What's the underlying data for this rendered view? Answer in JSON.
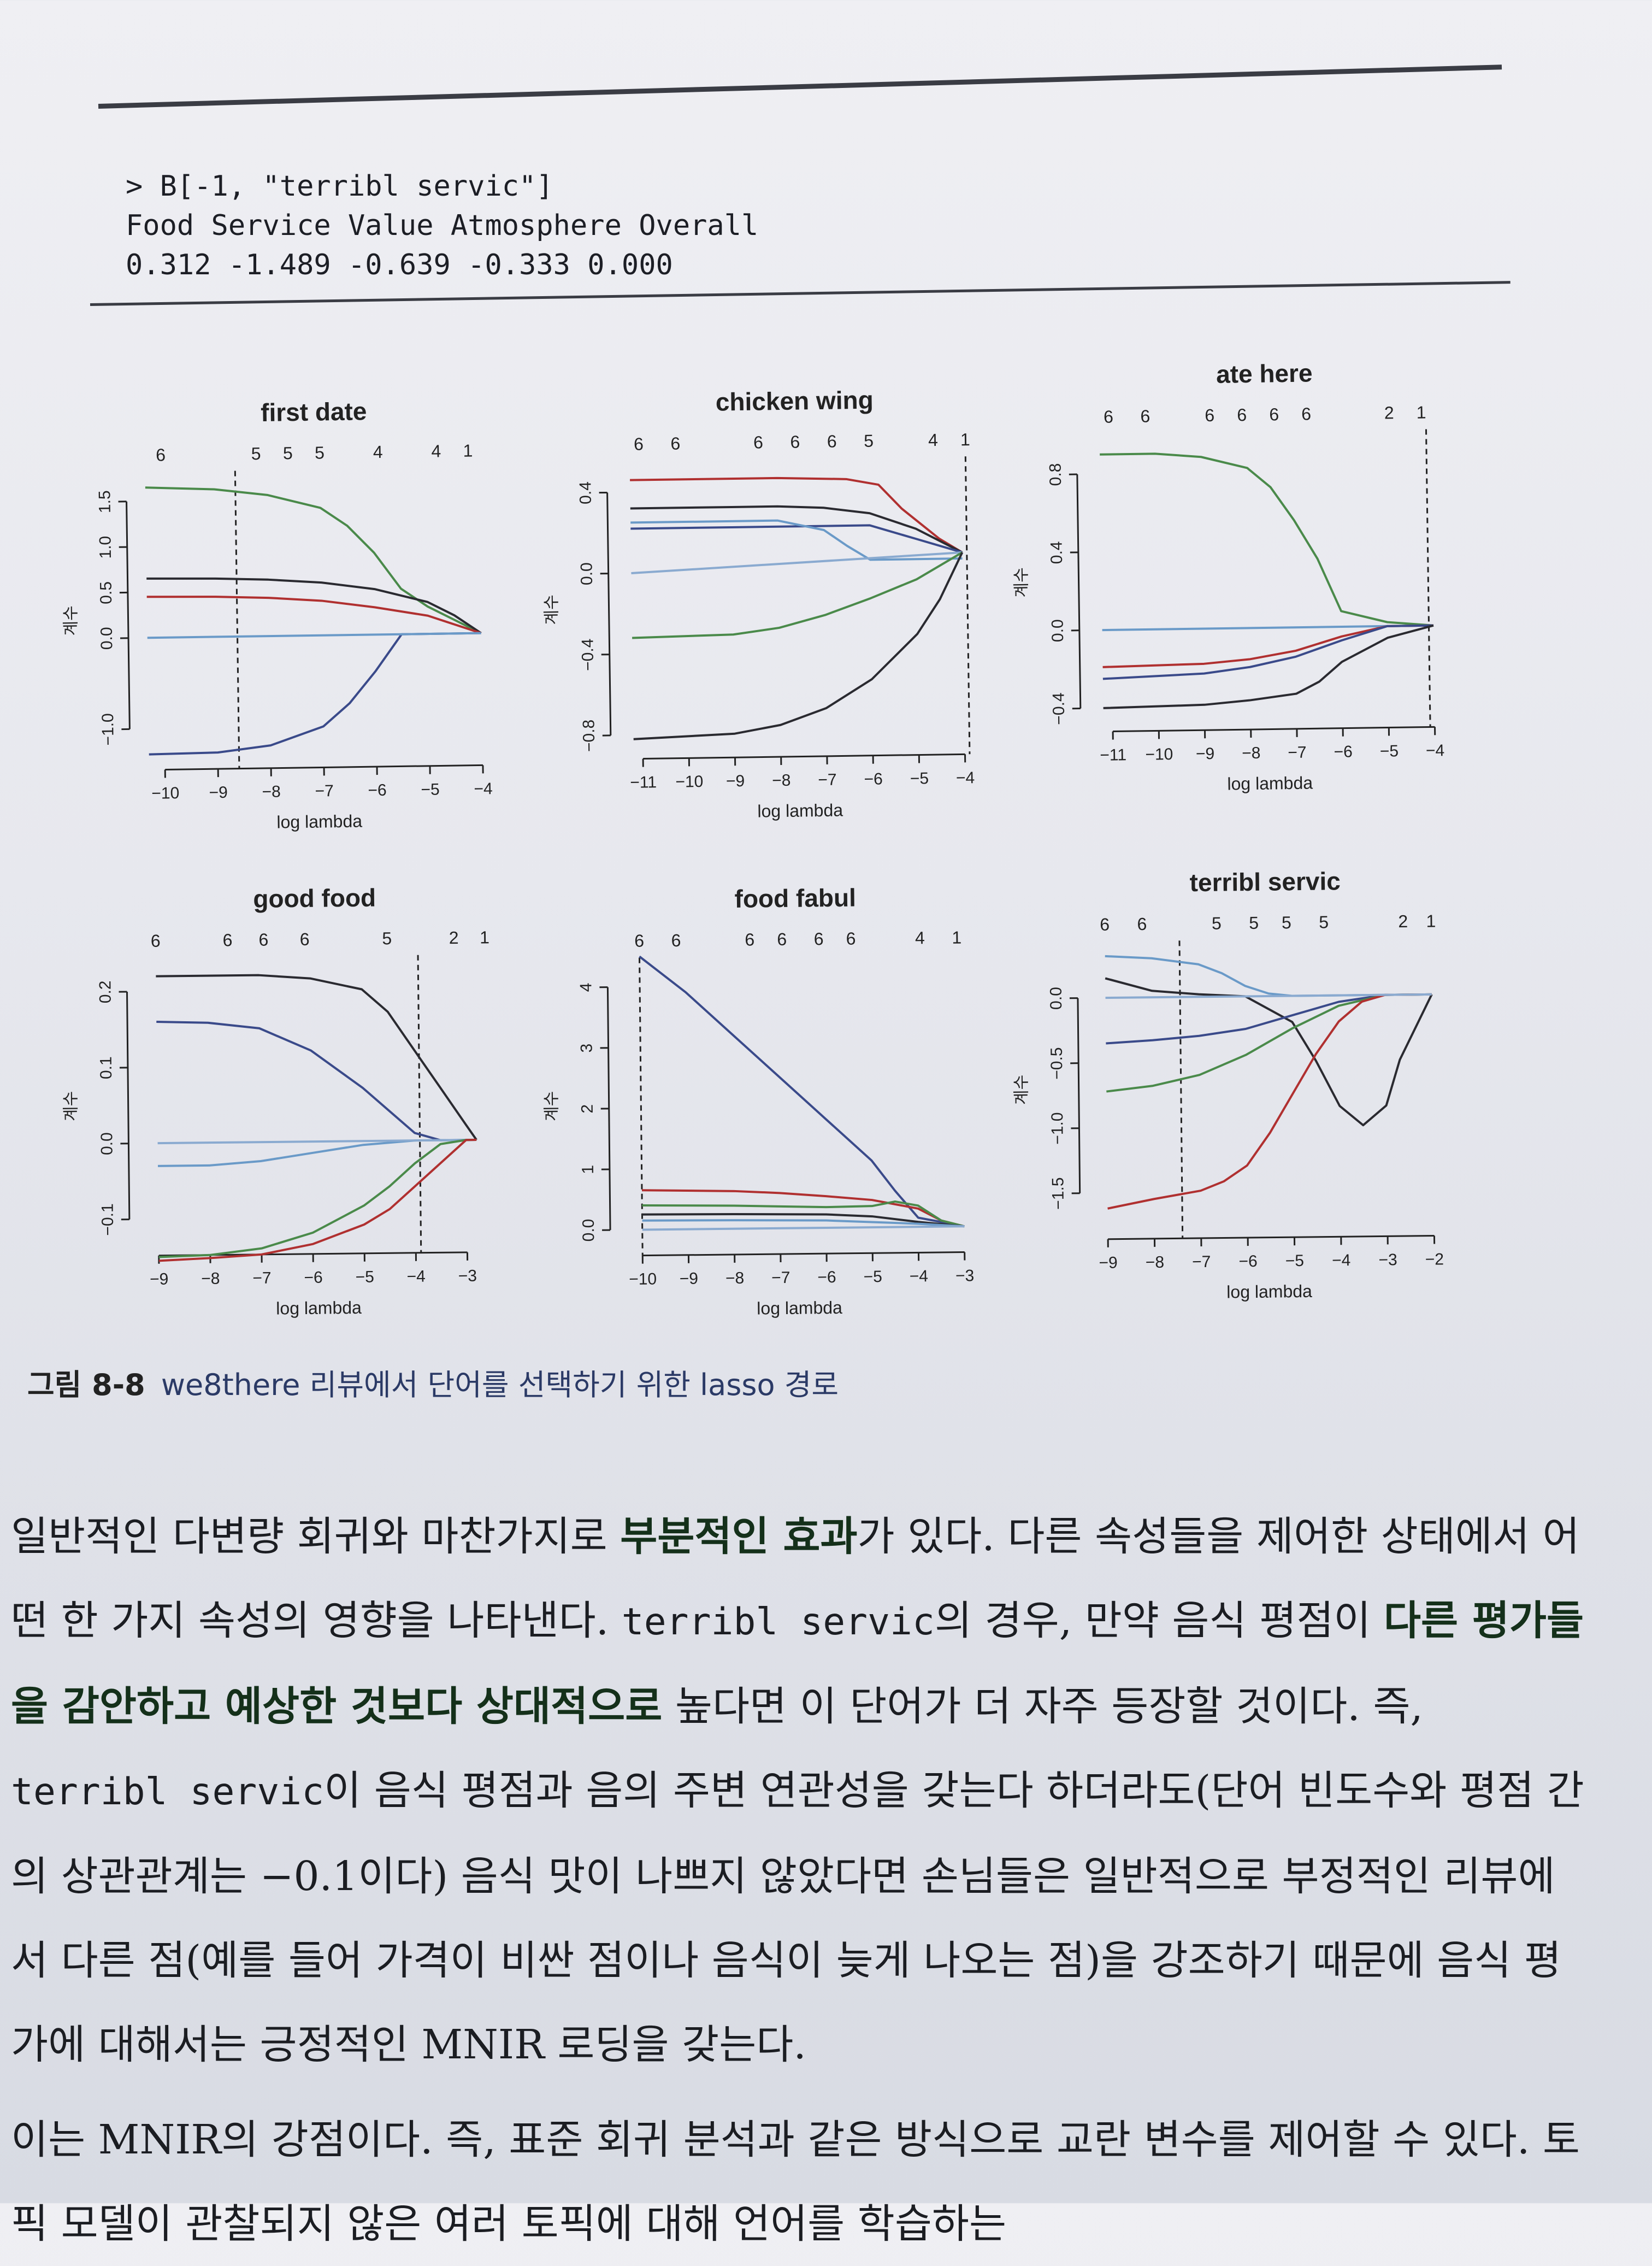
{
  "code": {
    "line1": "> B[-1, \"terribl servic\"]",
    "line2": "Food Service Value Atmosphere Overall",
    "line3": "0.312 -1.489 -0.639 -0.333 0.000"
  },
  "chart_data": [
    {
      "type": "line",
      "title": "first date",
      "xlabel": "log lambda",
      "ylabel": "계수",
      "top_axis_labels": [
        "6",
        "5",
        "5",
        "5",
        "4",
        "4",
        "1"
      ],
      "top_axis_x": [
        -10.0,
        -8.2,
        -7.6,
        -7.0,
        -5.9,
        -4.8,
        -4.2
      ],
      "xlim": [
        -10.4,
        -3.8
      ],
      "ylim": [
        -1.3,
        1.7
      ],
      "xticks": [
        -10,
        -9,
        -8,
        -7,
        -6,
        -5,
        -4
      ],
      "yticks": [
        -1.0,
        0.0,
        0.5,
        1.0,
        1.5
      ],
      "vline": -8.6,
      "series": [
        {
          "color": "#4a8a4a",
          "x": [
            -10.3,
            -9,
            -8,
            -7,
            -6.5,
            -6,
            -5.5,
            -5,
            -4.5,
            -4
          ],
          "values": [
            1.65,
            1.62,
            1.55,
            1.4,
            1.2,
            0.9,
            0.5,
            0.3,
            0.15,
            0
          ]
        },
        {
          "color": "#2a2a30",
          "x": [
            -10.3,
            -9,
            -8,
            -7,
            -6,
            -5,
            -4.5,
            -4
          ],
          "values": [
            0.65,
            0.64,
            0.62,
            0.58,
            0.5,
            0.35,
            0.2,
            0
          ]
        },
        {
          "color": "#b03030",
          "x": [
            -10.3,
            -9,
            -8,
            -7,
            -6,
            -5,
            -4.5,
            -4
          ],
          "values": [
            0.45,
            0.44,
            0.42,
            0.38,
            0.3,
            0.2,
            0.1,
            0
          ]
        },
        {
          "color": "#3a4a8a",
          "x": [
            -10.3,
            -9,
            -8,
            -7,
            -6.5,
            -6,
            -5.5,
            -4
          ],
          "values": [
            -1.28,
            -1.27,
            -1.2,
            -1.0,
            -0.75,
            -0.4,
            0,
            0
          ]
        },
        {
          "color": "#6a9ac8",
          "x": [
            -10.3,
            -4
          ],
          "values": [
            0,
            0
          ]
        }
      ]
    },
    {
      "type": "line",
      "title": "chicken wing",
      "xlabel": "log lambda",
      "ylabel": "계수",
      "top_axis_labels": [
        "6",
        "6",
        "6",
        "6",
        "6",
        "5",
        "4",
        "1"
      ],
      "top_axis_x": [
        -11.0,
        -10.2,
        -8.4,
        -7.6,
        -6.8,
        -6.0,
        -4.6,
        -3.9
      ],
      "xlim": [
        -11.4,
        -3.8
      ],
      "ylim": [
        -0.85,
        0.5
      ],
      "xticks": [
        -11,
        -10,
        -9,
        -8,
        -7,
        -6,
        -5,
        -4
      ],
      "yticks": [
        -0.8,
        -0.4,
        0.0,
        0.4
      ],
      "vline": -3.9,
      "series": [
        {
          "color": "#b03030",
          "x": [
            -11.2,
            -8,
            -6.5,
            -5.8,
            -5.3,
            -4.5,
            -4
          ],
          "values": [
            0.46,
            0.46,
            0.45,
            0.42,
            0.3,
            0.15,
            0.08
          ]
        },
        {
          "color": "#2a2a30",
          "x": [
            -11.2,
            -9,
            -8,
            -7,
            -6,
            -5,
            -4
          ],
          "values": [
            0.32,
            0.32,
            0.32,
            0.31,
            0.28,
            0.2,
            0.08
          ]
        },
        {
          "color": "#3a4a8a",
          "x": [
            -11.2,
            -9,
            -7,
            -6,
            -5,
            -4
          ],
          "values": [
            0.22,
            0.22,
            0.22,
            0.22,
            0.15,
            0.08
          ]
        },
        {
          "color": "#6a9ac8",
          "x": [
            -11.2,
            -8,
            -7,
            -6.5,
            -6,
            -4
          ],
          "values": [
            0.25,
            0.25,
            0.2,
            0.12,
            0.05,
            0.05
          ]
        },
        {
          "color": "#8aaad0",
          "x": [
            -11.2,
            -4
          ],
          "values": [
            0.0,
            0.08
          ]
        },
        {
          "color": "#4a8a4a",
          "x": [
            -11.2,
            -9,
            -8,
            -7,
            -6,
            -5,
            -4
          ],
          "values": [
            -0.32,
            -0.31,
            -0.28,
            -0.22,
            -0.14,
            -0.05,
            0.08
          ]
        },
        {
          "color": "#2a2a30",
          "x": [
            -11.2,
            -9,
            -8,
            -7,
            -6,
            -5,
            -4.5,
            -4
          ],
          "values": [
            -0.82,
            -0.8,
            -0.76,
            -0.68,
            -0.54,
            -0.32,
            -0.15,
            0.08
          ]
        }
      ]
    },
    {
      "type": "line",
      "title": "ate here",
      "xlabel": "log lambda",
      "ylabel": "계수",
      "top_axis_labels": [
        "6",
        "6",
        "6",
        "6",
        "6",
        "6",
        "2",
        "1"
      ],
      "top_axis_x": [
        -11.0,
        -10.2,
        -8.8,
        -8.1,
        -7.4,
        -6.7,
        -4.9,
        -4.2
      ],
      "xlim": [
        -11.4,
        -3.8
      ],
      "ylim": [
        -0.45,
        0.95
      ],
      "xticks": [
        -11,
        -10,
        -9,
        -8,
        -7,
        -6,
        -5,
        -4
      ],
      "yticks": [
        -0.4,
        0.0,
        0.4,
        0.8
      ],
      "vline": -4.1,
      "series": [
        {
          "color": "#4a8a4a",
          "x": [
            -11.2,
            -10,
            -9,
            -8,
            -7.5,
            -7,
            -6.5,
            -6,
            -5,
            -4
          ],
          "values": [
            0.9,
            0.9,
            0.88,
            0.82,
            0.72,
            0.55,
            0.35,
            0.08,
            0.02,
            0
          ]
        },
        {
          "color": "#6a9ac8",
          "x": [
            -11.2,
            -4
          ],
          "values": [
            0,
            0
          ]
        },
        {
          "color": "#b03030",
          "x": [
            -11.2,
            -9,
            -8,
            -7,
            -6,
            -5,
            -4
          ],
          "values": [
            -0.19,
            -0.18,
            -0.16,
            -0.12,
            -0.05,
            0,
            0
          ]
        },
        {
          "color": "#3a4a8a",
          "x": [
            -11.2,
            -9,
            -8,
            -7,
            -6,
            -5,
            -4
          ],
          "values": [
            -0.25,
            -0.23,
            -0.2,
            -0.15,
            -0.07,
            0,
            0
          ]
        },
        {
          "color": "#2a2a30",
          "x": [
            -11.2,
            -9,
            -8,
            -7,
            -6.5,
            -6,
            -5,
            -4
          ],
          "values": [
            -0.4,
            -0.39,
            -0.37,
            -0.34,
            -0.28,
            -0.18,
            -0.06,
            0
          ]
        }
      ]
    },
    {
      "type": "line",
      "title": "good food",
      "xlabel": "log lambda",
      "ylabel": "계수",
      "top_axis_labels": [
        "6",
        "6",
        "6",
        "6",
        "5",
        "2",
        "1"
      ],
      "top_axis_x": [
        -9.0,
        -7.6,
        -6.9,
        -6.1,
        -4.5,
        -3.2,
        -2.6
      ],
      "xlim": [
        -9.3,
        -2.5
      ],
      "ylim": [
        -0.13,
        0.23
      ],
      "xticks": [
        -9,
        -8,
        -7,
        -6,
        -5,
        -4,
        -3
      ],
      "yticks": [
        -0.1,
        0.0,
        0.1,
        0.2
      ],
      "vline": -3.9,
      "series": [
        {
          "color": "#2a2a30",
          "x": [
            -9,
            -7,
            -6,
            -5,
            -4.5,
            -4,
            -3.5,
            -3,
            -2.8
          ],
          "values": [
            0.22,
            0.22,
            0.215,
            0.2,
            0.17,
            0.12,
            0.07,
            0.02,
            0
          ]
        },
        {
          "color": "#3a4a8a",
          "x": [
            -9,
            -8,
            -7,
            -6,
            -5,
            -4,
            -3.5,
            -2.8
          ],
          "values": [
            0.16,
            0.158,
            0.15,
            0.12,
            0.07,
            0.01,
            0,
            0
          ]
        },
        {
          "color": "#6a9ac8",
          "x": [
            -9,
            -8,
            -7,
            -6,
            -5,
            -4,
            -2.8
          ],
          "values": [
            -0.03,
            -0.03,
            -0.025,
            -0.015,
            -0.005,
            0,
            0
          ]
        },
        {
          "color": "#8aaad0",
          "x": [
            -9,
            -2.8
          ],
          "values": [
            0,
            0
          ]
        },
        {
          "color": "#4a8a4a",
          "x": [
            -9,
            -8,
            -7,
            -6,
            -5,
            -4.5,
            -4,
            -3.5,
            -3,
            -2.8
          ],
          "values": [
            -0.15,
            -0.148,
            -0.14,
            -0.12,
            -0.085,
            -0.06,
            -0.03,
            -0.005,
            0,
            0
          ]
        },
        {
          "color": "#b03030",
          "x": [
            -9,
            -8,
            -7,
            -6,
            -5,
            -4.5,
            -4,
            -3.5,
            -3,
            -2.8
          ],
          "values": [
            -0.155,
            -0.152,
            -0.148,
            -0.135,
            -0.11,
            -0.09,
            -0.06,
            -0.03,
            0,
            0
          ]
        }
      ]
    },
    {
      "type": "line",
      "title": "food fabul",
      "xlabel": "log lambda",
      "ylabel": "계수",
      "top_axis_labels": [
        "6",
        "6",
        "6",
        "6",
        "6",
        "6",
        "4",
        "1"
      ],
      "top_axis_x": [
        -10.0,
        -9.2,
        -7.6,
        -6.9,
        -6.1,
        -5.4,
        -3.9,
        -3.1
      ],
      "xlim": [
        -10.4,
        -2.8
      ],
      "ylim": [
        -0.2,
        4.3
      ],
      "xticks": [
        -10,
        -9,
        -8,
        -7,
        -6,
        -5,
        -4,
        -3
      ],
      "yticks": [
        0,
        1,
        2,
        3,
        4
      ],
      "vline": -10.0,
      "series": [
        {
          "color": "#3a4a8a",
          "x": [
            -10,
            -9,
            -8,
            -7,
            -6,
            -5,
            -4.5,
            -4,
            -3
          ],
          "values": [
            4.5,
            3.9,
            3.2,
            2.5,
            1.8,
            1.1,
            0.6,
            0.15,
            0
          ]
        },
        {
          "color": "#b03030",
          "x": [
            -10,
            -8,
            -7,
            -6,
            -5,
            -4,
            -3.5,
            -3
          ],
          "values": [
            0.65,
            0.62,
            0.58,
            0.52,
            0.45,
            0.3,
            0.1,
            0
          ]
        },
        {
          "color": "#4a8a4a",
          "x": [
            -10,
            -8,
            -7,
            -6,
            -5,
            -4.5,
            -4,
            -3.5,
            -3
          ],
          "values": [
            0.4,
            0.38,
            0.36,
            0.34,
            0.35,
            0.42,
            0.35,
            0.1,
            0
          ]
        },
        {
          "color": "#2a2a30",
          "x": [
            -10,
            -8,
            -6,
            -5,
            -4,
            -3
          ],
          "values": [
            0.25,
            0.24,
            0.22,
            0.18,
            0.08,
            0
          ]
        },
        {
          "color": "#6a9ac8",
          "x": [
            -10,
            -8,
            -6,
            -4,
            -3
          ],
          "values": [
            0.15,
            0.14,
            0.12,
            0.05,
            0
          ]
        },
        {
          "color": "#8aaad0",
          "x": [
            -10,
            -3
          ],
          "values": [
            0,
            0
          ]
        }
      ]
    },
    {
      "type": "line",
      "title": "terribl servic",
      "xlabel": "log lambda",
      "ylabel": "계수",
      "top_axis_labels": [
        "6",
        "6",
        "5",
        "5",
        "5",
        "5",
        "2",
        "1"
      ],
      "top_axis_x": [
        -9.0,
        -8.2,
        -6.6,
        -5.8,
        -5.1,
        -4.3,
        -2.6,
        -2.0
      ],
      "xlim": [
        -9.3,
        -1.8
      ],
      "ylim": [
        -1.75,
        0.35
      ],
      "xticks": [
        -9,
        -8,
        -7,
        -6,
        -5,
        -4,
        -3,
        -2
      ],
      "yticks": [
        -1.5,
        -1.0,
        -0.5,
        0.0
      ],
      "vline": -7.4,
      "series": [
        {
          "color": "#6a9ac8",
          "x": [
            -9,
            -8,
            -7,
            -6.5,
            -6,
            -5.5,
            -5,
            -2
          ],
          "values": [
            0.32,
            0.3,
            0.25,
            0.18,
            0.08,
            0.02,
            0,
            0
          ]
        },
        {
          "color": "#2a2a30",
          "x": [
            -9,
            -8,
            -7,
            -6,
            -5,
            -4.5,
            -4,
            -3.5,
            -3,
            -2.7,
            -2
          ],
          "values": [
            0.15,
            0.05,
            0.02,
            0.0,
            -0.2,
            -0.5,
            -0.85,
            -1.0,
            -0.85,
            -0.5,
            0
          ]
        },
        {
          "color": "#3a4a8a",
          "x": [
            -9,
            -8,
            -7,
            -6,
            -5,
            -4,
            -3,
            -2
          ],
          "values": [
            -0.35,
            -0.33,
            -0.3,
            -0.25,
            -0.15,
            -0.05,
            0,
            0
          ]
        },
        {
          "color": "#4a8a4a",
          "x": [
            -9,
            -8,
            -7,
            -6,
            -5,
            -4,
            -3,
            -2
          ],
          "values": [
            -0.72,
            -0.68,
            -0.6,
            -0.45,
            -0.25,
            -0.08,
            0,
            0
          ]
        },
        {
          "color": "#b03030",
          "x": [
            -9,
            -8,
            -7,
            -6.5,
            -6,
            -5.5,
            -5,
            -4.5,
            -4,
            -3.5,
            -3,
            -2
          ],
          "values": [
            -1.62,
            -1.55,
            -1.49,
            -1.42,
            -1.3,
            -1.05,
            -0.75,
            -0.45,
            -0.2,
            -0.05,
            0,
            0
          ]
        },
        {
          "color": "#8aaad0",
          "x": [
            -9,
            -2
          ],
          "values": [
            0,
            0
          ]
        }
      ]
    }
  ],
  "caption": {
    "number": "그림 8-8",
    "text": "we8there 리뷰에서 단어를 선택하기 위한 lasso 경로"
  },
  "body": {
    "p1_a": "일반적인 다변량 회귀와 마찬가지로 ",
    "p1_b": "부분적인 효과",
    "p1_c": "가 있다. 다른 속성들을 제어한 상태에서 어떤 한 가지 속성의 영향을 나타낸다. ",
    "p1_d": "terribl servic",
    "p1_e": "의 경우, 만약 음식 평점이 ",
    "p1_f": "다른 평가들을 감안하고 예상한 것보다 상대적으로",
    "p1_g": " 높다면 이 단어가 더 자주 등장할 것이다. 즉, ",
    "p1_h": "terribl servic",
    "p1_i": "이 음식 평점과 음의 주변 연관성을 갖는다 하더라도(단어 빈도수와 평점 간의 상관관계는 −0.1이다) 음식 맛이 나쁘지 않았다면 손님들은 일반적으로 부정적인 리뷰에서 다른 점(예를 들어 가격이 비싼 점이나 음식이 늦게 나오는 점)을 강조하기 때문에 음식 평가에 대해서는 긍정적인 MNIR 로딩을 갖는다.",
    "p2": "이는 MNIR의 강점이다. 즉, 표준 회귀 분석과 같은 방식으로 교란 변수를 제어할 수 있다. 토픽 모델이 관찰되지 않은 여러 토픽에 대해 언어를 학습하는"
  }
}
